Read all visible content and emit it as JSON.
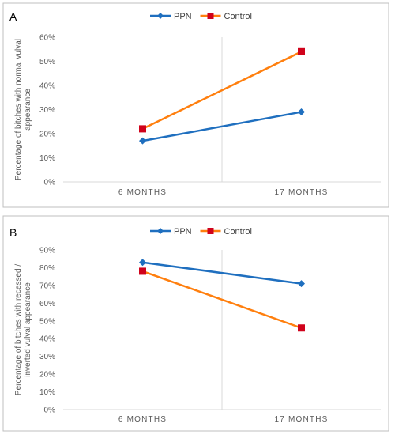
{
  "colors": {
    "ppn": "#1f6fbf",
    "control": "#ff7f0e",
    "control_marker": "#d0021b"
  },
  "chart_data": [
    {
      "panel": "A",
      "type": "line",
      "categories": [
        "6 MONTHS",
        "17 MONTHS"
      ],
      "ylabel": [
        "Percentage of bitches with normal vulval",
        "appearance"
      ],
      "ylim": [
        0,
        60
      ],
      "yticks": [
        "0%",
        "10%",
        "20%",
        "30%",
        "40%",
        "50%",
        "60%"
      ],
      "legend": "top-center",
      "series": [
        {
          "name": "PPN",
          "marker": "diamond",
          "values": [
            17,
            29
          ]
        },
        {
          "name": "Control",
          "marker": "square",
          "values": [
            22,
            54
          ]
        }
      ]
    },
    {
      "panel": "B",
      "type": "line",
      "categories": [
        "6 MONTHS",
        "17 MONTHS"
      ],
      "ylabel": [
        "Percentage of bitches with recessed /",
        "inverted vulval appearance"
      ],
      "ylim": [
        0,
        90
      ],
      "yticks": [
        "0%",
        "10%",
        "20%",
        "30%",
        "40%",
        "50%",
        "60%",
        "70%",
        "80%",
        "90%"
      ],
      "legend": "top-center",
      "series": [
        {
          "name": "PPN",
          "marker": "diamond",
          "values": [
            83,
            71
          ]
        },
        {
          "name": "Control",
          "marker": "square",
          "values": [
            78,
            46
          ]
        }
      ]
    }
  ]
}
